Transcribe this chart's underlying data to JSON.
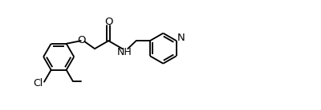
{
  "bg": "#ffffff",
  "lc": "#000000",
  "lw": 1.35,
  "fs": 9.0,
  "figsize": [
    4.0,
    1.38
  ],
  "dpi": 100,
  "xlim": [
    -0.3,
    8.5
  ],
  "ylim": [
    -1.15,
    1.25
  ],
  "R": 0.42
}
